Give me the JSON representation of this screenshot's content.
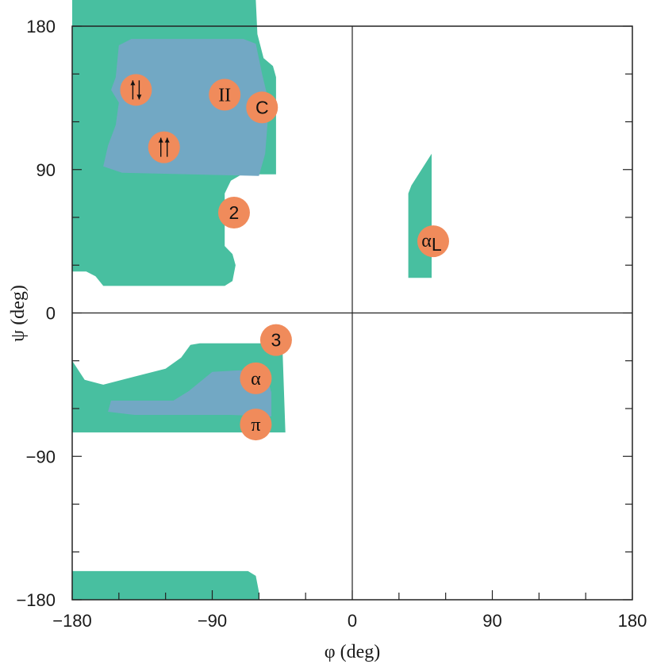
{
  "chart_data": {
    "type": "scatter",
    "title": "",
    "xlabel": "φ (deg)",
    "ylabel": "ψ (deg)",
    "xlim": [
      -180,
      180
    ],
    "ylim": [
      -180,
      180
    ],
    "x_ticks": [
      "−180",
      "−90",
      "0",
      "90",
      "180"
    ],
    "y_ticks": [
      "180",
      "90",
      "0",
      "−90",
      "−180"
    ],
    "grid": false,
    "zero_lines": true,
    "colors": {
      "allowed_region": "#48bfa0",
      "core_region": "#72a8c4",
      "marker": "#f08b5b",
      "axis": "#222222"
    },
    "regions": [
      {
        "name": "allowed",
        "polygon": [
          [
            -180,
            180
          ],
          [
            -62,
            180
          ],
          [
            -61,
            175
          ],
          [
            -57,
            160
          ],
          [
            -51,
            155
          ],
          [
            -49,
            148
          ],
          [
            -49,
            87
          ],
          [
            -71,
            87
          ],
          [
            -78,
            83
          ],
          [
            -82,
            75
          ],
          [
            -82,
            42
          ],
          [
            -77,
            37
          ],
          [
            -75,
            30
          ],
          [
            -77,
            20
          ],
          [
            -82,
            17
          ],
          [
            -160,
            17
          ],
          [
            -165,
            23
          ],
          [
            -171,
            26
          ],
          [
            -180,
            26
          ]
        ]
      },
      {
        "name": "allowed",
        "polygon": [
          [
            -180,
            -30
          ],
          [
            -172,
            -42
          ],
          [
            -160,
            -45
          ],
          [
            -140,
            -40
          ],
          [
            -120,
            -35
          ],
          [
            -110,
            -28
          ],
          [
            -104,
            -20
          ],
          [
            -98,
            -19
          ],
          [
            -45,
            -19
          ],
          [
            -43,
            -75
          ],
          [
            -180,
            -75
          ]
        ]
      },
      {
        "name": "allowed",
        "polygon": [
          [
            -180,
            -162
          ],
          [
            -67,
            -162
          ],
          [
            -62,
            -165
          ],
          [
            -60,
            -175
          ],
          [
            -60,
            -180
          ],
          [
            -180,
            -180
          ]
        ]
      },
      {
        "name": "allowed",
        "polygon": [
          [
            51,
            100
          ],
          [
            51,
            22
          ],
          [
            36,
            22
          ],
          [
            36,
            75
          ],
          [
            38,
            80
          ]
        ]
      },
      {
        "name": "core",
        "polygon": [
          [
            -150,
            168
          ],
          [
            -142,
            172
          ],
          [
            -70,
            172
          ],
          [
            -62,
            169
          ],
          [
            -58,
            150
          ],
          [
            -55,
            138
          ],
          [
            -54,
            125
          ],
          [
            -56,
            100
          ],
          [
            -60,
            86
          ],
          [
            -148,
            88
          ],
          [
            -160,
            92
          ],
          [
            -157,
            105
          ],
          [
            -152,
            118
          ],
          [
            -150,
            132
          ],
          [
            -155,
            140
          ],
          [
            -152,
            148
          ]
        ]
      },
      {
        "name": "core",
        "polygon": [
          [
            -155,
            -55
          ],
          [
            -130,
            -55
          ],
          [
            -115,
            -55
          ],
          [
            -105,
            -49
          ],
          [
            -90,
            -37
          ],
          [
            -72,
            -36
          ],
          [
            -56,
            -36
          ],
          [
            -52,
            -50
          ],
          [
            -52,
            -65
          ],
          [
            -78,
            -64
          ],
          [
            -140,
            -64
          ],
          [
            -157,
            -62
          ]
        ]
      }
    ],
    "points": [
      {
        "label": "↑↓",
        "x": -139,
        "y": 140
      },
      {
        "label": "II",
        "x": -82,
        "y": 137
      },
      {
        "label": "C",
        "x": -58,
        "y": 129
      },
      {
        "label": "↑↑",
        "x": -121,
        "y": 104
      },
      {
        "label": "2",
        "x": -76,
        "y": 63
      },
      {
        "label": "αL",
        "x": 52,
        "y": 45
      },
      {
        "label": "3",
        "x": -49,
        "y": -17
      },
      {
        "label": "α",
        "x": -62,
        "y": -41
      },
      {
        "label": "π",
        "x": -62,
        "y": -70
      }
    ]
  }
}
